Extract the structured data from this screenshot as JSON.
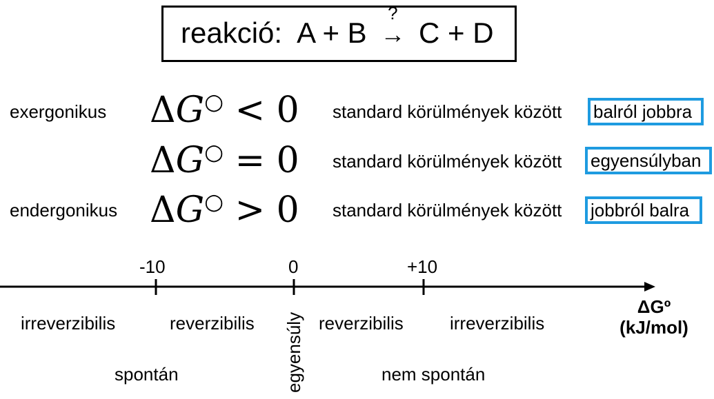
{
  "header": {
    "prefix": "reakció:",
    "lhs": "A + B",
    "question": "?",
    "arrow": "→",
    "rhs": "C + D"
  },
  "rows": [
    {
      "label": "exergonikus",
      "formula_sign": "<",
      "condition": "standard körülmények között",
      "result": "balról jobbra"
    },
    {
      "label": "",
      "formula_sign": "=",
      "condition": "standard körülmények között",
      "result": "egyensúlyban"
    },
    {
      "label": "endergonikus",
      "formula_sign": ">",
      "condition": "standard körülmények között",
      "result": "jobbról balra"
    }
  ],
  "formula": {
    "delta": "Δ",
    "G": "G",
    "degree": "○",
    "zero": "0"
  },
  "axis": {
    "ticks": [
      {
        "label": "-10",
        "value": -10
      },
      {
        "label": "0",
        "value": 0
      },
      {
        "label": "+10",
        "value": 10
      }
    ],
    "title_line1": "ΔGº",
    "title_line2": "(kJ/mol)",
    "regions": {
      "irrev_left": "irreverzibilis",
      "rev_left": "reverzibilis",
      "equilibrium": "egyensúly",
      "rev_right": "reverzibilis",
      "irrev_right": "irreverzibilis",
      "spontaneous": "spontán",
      "non_spontaneous": "nem spontán"
    },
    "colors": {
      "axis": "#000000",
      "highlight": "#1e9be0"
    }
  }
}
